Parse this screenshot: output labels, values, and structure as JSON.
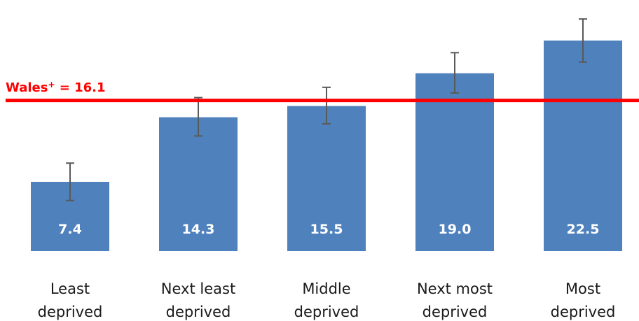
{
  "chart_data": {
    "type": "bar",
    "categories": [
      [
        "Least",
        "deprived"
      ],
      [
        "Next least",
        "deprived"
      ],
      [
        "Middle",
        "deprived"
      ],
      [
        "Next most",
        "deprived"
      ],
      [
        "Most",
        "deprived"
      ]
    ],
    "values": [
      7.4,
      14.3,
      15.5,
      19.0,
      22.5
    ],
    "value_labels": [
      "7.4",
      "14.3",
      "15.5",
      "19.0",
      "22.5"
    ],
    "error_bars": [
      {
        "low": 5.4,
        "high": 9.4
      },
      {
        "low": 12.3,
        "high": 16.4
      },
      {
        "low": 13.6,
        "high": 17.5
      },
      {
        "low": 16.9,
        "high": 21.2
      },
      {
        "low": 20.2,
        "high": 24.8
      }
    ],
    "reference_line": {
      "value": 16.1,
      "label_prefix": "Wales",
      "label_sup": "+",
      "label_suffix": " = 16.1",
      "color": "#ff0000"
    },
    "bar_color": "#4f81bd",
    "error_bar_color": "#595959",
    "ylim": [
      0,
      25
    ],
    "title": "",
    "xlabel": "",
    "ylabel": "",
    "grid": false,
    "legend": "none"
  }
}
